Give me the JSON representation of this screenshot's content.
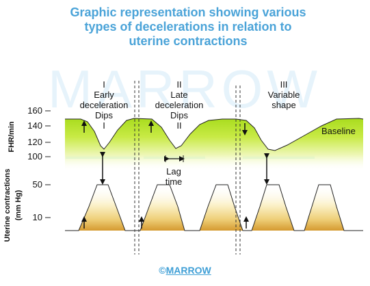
{
  "title": {
    "line1": "Graphic representation showing various",
    "line2": "types of decelerations in relation to",
    "line3": "uterine contractions"
  },
  "watermark": "MARROW",
  "footer": {
    "copyright": "©",
    "brand": "MARROW"
  },
  "axes": {
    "fhr_label": "FHR/min",
    "fhr_ticks": [
      "160",
      "140",
      "120",
      "100"
    ],
    "uterine_label": "Uterine contractions",
    "uterine_unit": "(mm Hg)",
    "uterine_ticks": [
      "50",
      "10"
    ]
  },
  "sections": {
    "early": {
      "num_top": "I",
      "line1": "Early",
      "line2": "deceleration",
      "line3": "Dips",
      "num_bottom": "I"
    },
    "late": {
      "num_top": "II",
      "line1": "Late",
      "line2": "deceleration",
      "line3": "Dips",
      "num_bottom": "II"
    },
    "variable": {
      "num_top": "III",
      "line1": "Variable",
      "line2": "shape"
    }
  },
  "annotations": {
    "baseline": "Baseline",
    "lag_line1": "Lag",
    "lag_line2": "time"
  },
  "colors": {
    "title": "#4aa3d8",
    "green": "#b7e02a",
    "cyan": "#9ee8ea",
    "orange": "#d9a033",
    "watermark": "#e6f3fb"
  }
}
